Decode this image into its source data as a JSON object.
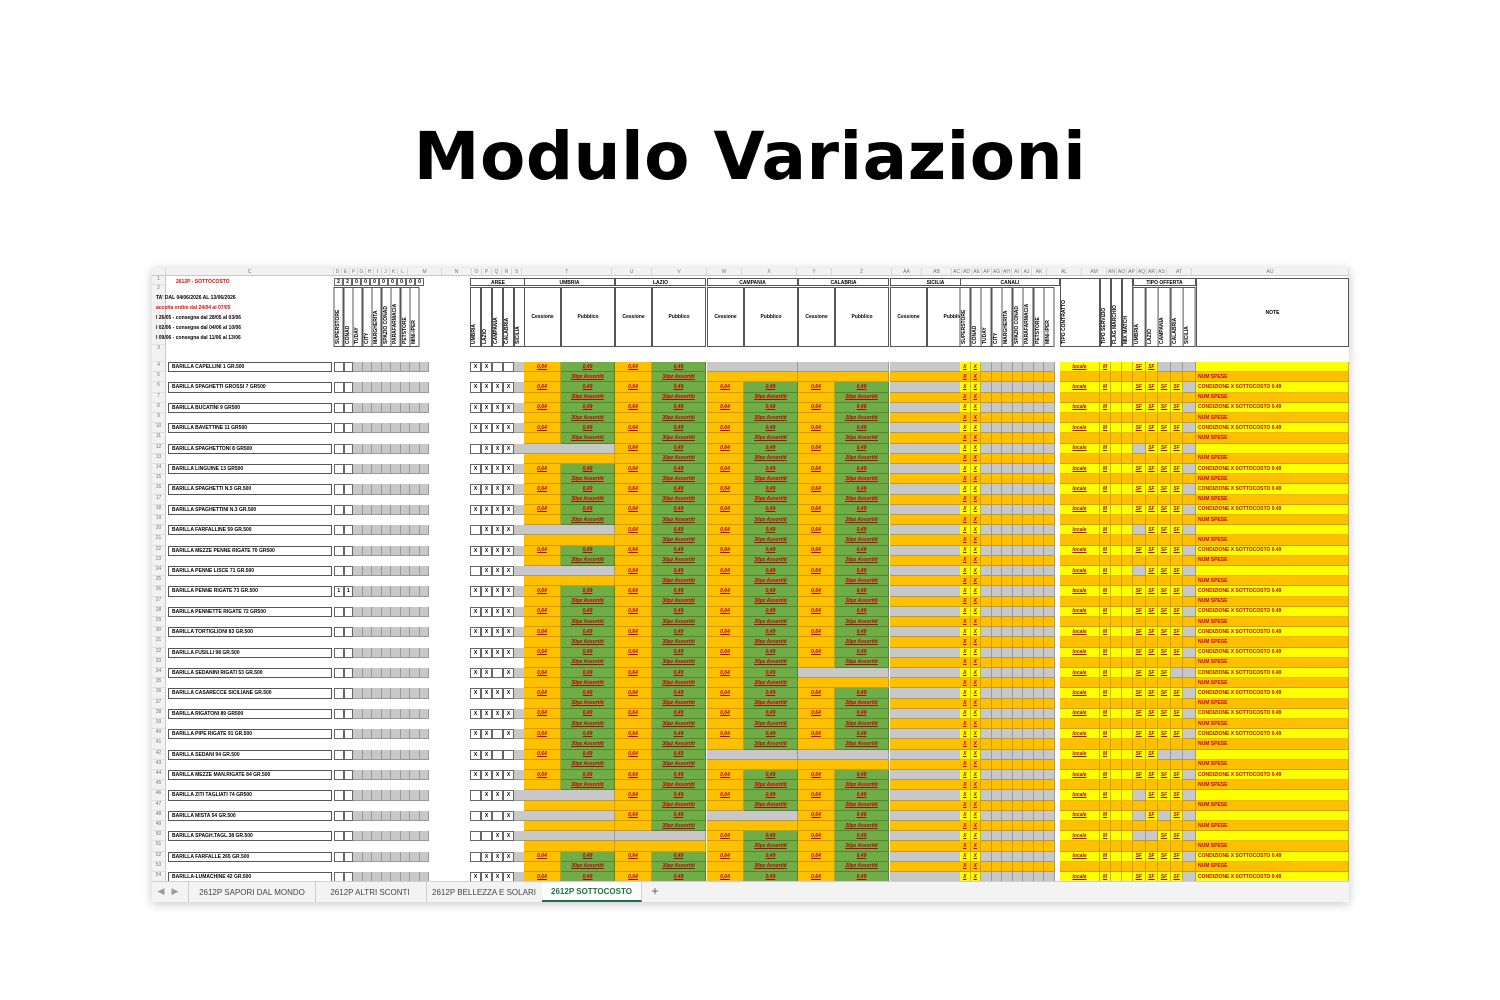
{
  "title": "Modulo Variazioni",
  "sheet": {
    "col_letters": [
      "C",
      "D",
      "E",
      "F",
      "G",
      "H",
      "I",
      "J",
      "K",
      "L",
      "M",
      "N",
      "O",
      "P",
      "Q",
      "R",
      "S",
      "T",
      "U",
      "V",
      "W",
      "X",
      "Y",
      "Z",
      "AA",
      "AB",
      "AC",
      "AD",
      "AE",
      "AF",
      "AG",
      "AH",
      "AI",
      "AJ",
      "AK",
      "AL",
      "AM",
      "AN",
      "AO",
      "AP",
      "AQ",
      "AR",
      "AS",
      "AT",
      "AU"
    ],
    "header": {
      "promo": "2612P - SOTTOCOSTO",
      "lines": [
        {
          "text": "TA' DAL 04/06/2026 AL 13/06/2026",
          "color": "black"
        },
        {
          "text": "accolta ordini dal 24/04 al 07/05",
          "color": "red"
        },
        {
          "text": "l 26/05 - consegna dal 28/05 al 03/06",
          "color": "black"
        },
        {
          "text": "l 02/06 - consegna dal 04/06 al 10/06",
          "color": "black"
        },
        {
          "text": "l 09/06 - consegna dal 11/06 al 13/06",
          "color": "black"
        }
      ],
      "flags_row": [
        "2",
        "2",
        "0",
        "0",
        "0",
        "0",
        "0",
        "0",
        "0",
        "0"
      ],
      "formats": [
        "SUPERSTORE",
        "CONAD",
        "TUDAY",
        "CITY",
        "MARGHERITA",
        "SPAZIO CONAD",
        "PARAFARMACIA",
        "PETSTORE",
        "MINI-IPER"
      ],
      "aree_label": "AREE",
      "aree": [
        "UMBRIA",
        "LAZIO",
        "CAMPANIA",
        "CALABRIA",
        "SICILIA"
      ],
      "regions": [
        "UMBRIA",
        "LAZIO",
        "CAMPANIA",
        "CALABRIA",
        "SICILIA"
      ],
      "cessione": "Cessione",
      "pubblico": "Pubblico",
      "canali_label": "CANALI",
      "canali": [
        "SUPERSTORE",
        "CONAD",
        "TUDAY",
        "CITY",
        "MARGHERITA",
        "SPAZIO CONAD",
        "PARAFARMACIA",
        "PETSTORE",
        "MINI-IPER"
      ],
      "tipo_contratto": "TIPO CONTRATTO",
      "misc": [
        "TIPO SERVIZIO",
        "FLAG MARCHIO",
        "MIX MATCH"
      ],
      "tipo_offerta_label": "TIPO OFFERTA",
      "tipo_offerta": [
        "UMBRIA",
        "LAZIO",
        "CAMPANIA",
        "CALABRIA",
        "SICILIA"
      ],
      "note_label": "NOTE"
    },
    "values": {
      "cessione": "0,64",
      "pubblico": "0,49",
      "assortiti": "30pz Assortiti",
      "x": "X",
      "contratto": "locale",
      "servizio": "M",
      "offerta": "SF",
      "nota1": "CONDIZIONE X SOTTOCOSTO 0.49",
      "nota2": "NUM SPESE"
    },
    "products": [
      {
        "row": "4",
        "name": "BARILLA CAPELLINI 1  GR.500",
        "aree": [
          1,
          1,
          0,
          0,
          0
        ],
        "regions": [
          1,
          1,
          0,
          0,
          0
        ]
      },
      {
        "row": "6",
        "name": "BARILLA SPAGHETTI GROSSI 7 GR500",
        "aree": [
          1,
          1,
          1,
          1,
          0
        ],
        "regions": [
          1,
          1,
          1,
          1,
          0
        ]
      },
      {
        "row": "8",
        "name": "BARILLA BUCATINI 9  GR500",
        "aree": [
          1,
          1,
          1,
          1,
          0
        ],
        "regions": [
          1,
          1,
          1,
          1,
          0
        ]
      },
      {
        "row": "10",
        "name": "BARILLA BAVETTINE 11  GR500",
        "aree": [
          1,
          1,
          1,
          1,
          0
        ],
        "regions": [
          1,
          1,
          1,
          1,
          0
        ]
      },
      {
        "row": "12",
        "name": "BARILLA SPAGHETTONI 8 GR500",
        "aree": [
          0,
          1,
          1,
          1,
          0
        ],
        "regions": [
          0,
          1,
          1,
          1,
          0
        ]
      },
      {
        "row": "14",
        "name": "BARILLA LINGUINE 13 GR500",
        "aree": [
          1,
          1,
          1,
          1,
          0
        ],
        "regions": [
          1,
          1,
          1,
          1,
          0
        ]
      },
      {
        "row": "16",
        "name": "BARILLA SPAGHETTI N.5 GR.500",
        "aree": [
          1,
          1,
          1,
          1,
          0
        ],
        "regions": [
          1,
          1,
          1,
          1,
          0
        ]
      },
      {
        "row": "18",
        "name": "BARILLA SPAGHETTINI N.3 GR.500",
        "aree": [
          1,
          1,
          1,
          1,
          0
        ],
        "regions": [
          1,
          1,
          1,
          1,
          0
        ]
      },
      {
        "row": "20",
        "name": "BARILLA FARFALLINE  59  GR.500",
        "aree": [
          0,
          1,
          1,
          1,
          0
        ],
        "regions": [
          0,
          1,
          1,
          1,
          0
        ]
      },
      {
        "row": "22",
        "name": "BARILLA MEZZE PENNE RIGATE 70 GR500",
        "aree": [
          1,
          1,
          1,
          1,
          0
        ],
        "regions": [
          1,
          1,
          1,
          1,
          0
        ]
      },
      {
        "row": "24",
        "name": "BARILLA PENNE LISCE 71 GR.500",
        "aree": [
          0,
          1,
          1,
          1,
          0
        ],
        "regions": [
          0,
          1,
          1,
          1,
          0
        ]
      },
      {
        "row": "26",
        "name": "BARILLA PENNE RIGATE 73  GR.500",
        "aree": [
          1,
          1,
          1,
          1,
          0
        ],
        "regions": [
          1,
          1,
          1,
          1,
          0
        ]
      },
      {
        "row": "28",
        "name": "BARILLA PENNETTE RIGATE 72 GR500",
        "aree": [
          1,
          1,
          1,
          1,
          0
        ],
        "regions": [
          1,
          1,
          1,
          1,
          0
        ]
      },
      {
        "row": "30",
        "name": "BARILLA TORTIGLIONI 83  GR.500",
        "aree": [
          1,
          1,
          1,
          1,
          0
        ],
        "regions": [
          1,
          1,
          1,
          1,
          0
        ]
      },
      {
        "row": "32",
        "name": "BARILLA FUSILLI 98  GR.500",
        "aree": [
          1,
          1,
          1,
          1,
          0
        ],
        "regions": [
          1,
          1,
          1,
          1,
          0
        ]
      },
      {
        "row": "34",
        "name": "BARILLA SEDANINI RIGATI 53  GR.500",
        "aree": [
          1,
          1,
          0,
          1,
          0
        ],
        "regions": [
          1,
          1,
          1,
          0,
          0
        ]
      },
      {
        "row": "36",
        "name": "BARILLA CASARECCE SICILIANE GR.500",
        "aree": [
          1,
          1,
          1,
          1,
          0
        ],
        "regions": [
          1,
          1,
          1,
          1,
          0
        ]
      },
      {
        "row": "38",
        "name": "BARILLA RIGATONI 89 GR500",
        "aree": [
          1,
          1,
          1,
          1,
          0
        ],
        "regions": [
          1,
          1,
          1,
          1,
          0
        ]
      },
      {
        "row": "40",
        "name": "BARILLA PIPE RIGATE 91  GR.500",
        "aree": [
          1,
          1,
          0,
          1,
          0
        ],
        "regions": [
          1,
          1,
          1,
          1,
          0
        ]
      },
      {
        "row": "42",
        "name": "BARILLA SEDANI 94  GR.500",
        "aree": [
          1,
          1,
          0,
          0,
          0
        ],
        "regions": [
          1,
          1,
          0,
          0,
          0
        ]
      },
      {
        "row": "44",
        "name": "BARILLA MEZZE MAN.RIGATE 84  GR.500",
        "aree": [
          1,
          1,
          1,
          1,
          0
        ],
        "regions": [
          1,
          1,
          1,
          1,
          0
        ]
      },
      {
        "row": "46",
        "name": "BARILLA ZITI TAGLIATI 74  GR500",
        "aree": [
          0,
          1,
          1,
          1,
          0
        ],
        "regions": [
          0,
          1,
          1,
          1,
          0
        ]
      },
      {
        "row": "48",
        "name": "BARILLA MISTA 54 GR.500",
        "aree": [
          0,
          1,
          0,
          1,
          0
        ],
        "regions": [
          0,
          1,
          0,
          1,
          0
        ]
      },
      {
        "row": "50",
        "name": "BARILLA SPAGH.TAGL.38 GR.500",
        "aree": [
          0,
          0,
          1,
          1,
          0
        ],
        "regions": [
          0,
          0,
          1,
          1,
          0
        ]
      },
      {
        "row": "52",
        "name": "BARILLA FARFALLE 265 GR.500",
        "aree": [
          0,
          1,
          1,
          1,
          0
        ],
        "regions": [
          1,
          1,
          1,
          1,
          0
        ]
      },
      {
        "row": "54",
        "name": "BARILLA-LUMACHINE 42 GR.500",
        "aree": [
          1,
          1,
          1,
          1,
          0
        ],
        "regions": [
          1,
          1,
          1,
          1,
          0
        ]
      }
    ],
    "row26_extra": [
      "1",
      "1"
    ]
  },
  "tabs": [
    {
      "label": "2612P SAPORI DAL MONDO"
    },
    {
      "label": "2612P ALTRI SCONTI"
    },
    {
      "label": "2612P BELLEZZA E SOLARI"
    },
    {
      "label": "2612P SOTTOCOSTO",
      "active": true
    }
  ],
  "tab_add": "+",
  "tab_prev": "◀",
  "tab_next": "▶"
}
